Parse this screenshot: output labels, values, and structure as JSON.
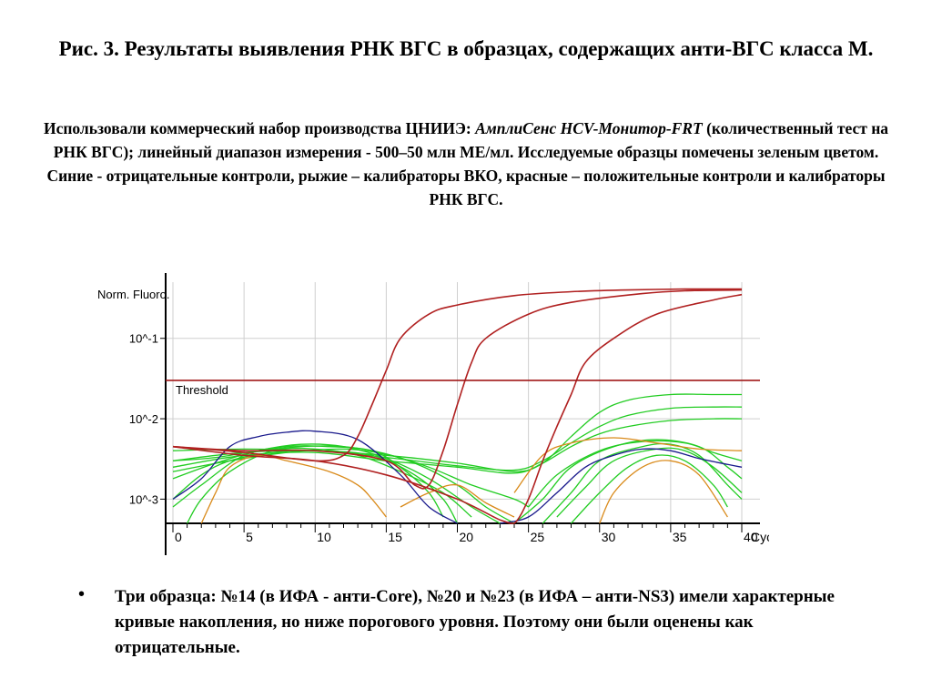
{
  "slide": {
    "title": "Рис. 3. Результаты выявления РНК ВГС в образцах, содержащих анти-ВГС класса М.",
    "desc_prefix": "Использовали коммерческий набор производства ЦНИИЭ: ",
    "desc_kit": "АмплиСенс HCV-Монитор-FRT",
    "desc_rest": " (количественный тест на РНК ВГС); линейный диапазон измерения - 500–50 млн МЕ/мл. Исследуемые образцы помечены зеленым цветом. Синие - отрицательные контроли, рыжие – калибраторы ВКО, красные – положительные контроли и калибраторы РНК ВГС.",
    "bullet_symbol": "•",
    "bullet": "Три образца: №14 (в ИФА - анти-Core),  №20 и №23 (в ИФА – анти-NS3) имели характерные кривые накопления, но ниже порогового уровня. Поэтому они были оценены как отрицательные."
  },
  "colors": {
    "sample": "#22cc22",
    "negative_control": "#1a1a8c",
    "vko_calibrator": "#d98a1a",
    "positive": "#b02020",
    "threshold": "#a01818",
    "grid": "#cfcfcf"
  },
  "chart_data": {
    "type": "line",
    "y_scale": "log",
    "ylabel": "Norm. Fluoro.",
    "xlabel": "Cycle",
    "x_range": [
      0,
      40
    ],
    "y_range": [
      0.0005,
      0.5
    ],
    "x_ticks": [
      0,
      5,
      10,
      15,
      20,
      25,
      30,
      35,
      40
    ],
    "x_tick_labels": [
      "0",
      "5",
      "10",
      "15",
      "20",
      "25",
      "30",
      "35",
      "40"
    ],
    "y_ticks": [
      0.001,
      0.01,
      0.1
    ],
    "y_tick_labels": [
      "10^-3",
      "10^-2",
      "10^-1"
    ],
    "threshold": {
      "label": "Threshold",
      "value": 0.03
    },
    "grid": true,
    "series": [
      {
        "group": "positive",
        "color": "#b02020",
        "points": [
          [
            0,
            0.0045
          ],
          [
            5,
            0.0038
          ],
          [
            10,
            0.003
          ],
          [
            12,
            0.0035
          ],
          [
            13,
            0.006
          ],
          [
            14,
            0.015
          ],
          [
            15,
            0.04
          ],
          [
            16,
            0.1
          ],
          [
            18,
            0.2
          ],
          [
            20,
            0.26
          ],
          [
            24,
            0.34
          ],
          [
            28,
            0.38
          ],
          [
            32,
            0.4
          ],
          [
            36,
            0.41
          ],
          [
            40,
            0.41
          ]
        ]
      },
      {
        "group": "positive",
        "color": "#b02020",
        "points": [
          [
            0,
            0.0045
          ],
          [
            5,
            0.004
          ],
          [
            10,
            0.004
          ],
          [
            15,
            0.003
          ],
          [
            17,
            0.0015
          ],
          [
            18,
            0.0015
          ],
          [
            19,
            0.004
          ],
          [
            20,
            0.015
          ],
          [
            21,
            0.05
          ],
          [
            22,
            0.1
          ],
          [
            25,
            0.2
          ],
          [
            28,
            0.28
          ],
          [
            33,
            0.36
          ],
          [
            36,
            0.39
          ],
          [
            40,
            0.4
          ]
        ]
      },
      {
        "group": "positive",
        "color": "#b02020",
        "points": [
          [
            0,
            0.0045
          ],
          [
            5,
            0.0035
          ],
          [
            10,
            0.003
          ],
          [
            15,
            0.002
          ],
          [
            20,
            0.001
          ],
          [
            23,
            0.00055
          ],
          [
            24,
            0.0005
          ],
          [
            25,
            0.001
          ],
          [
            26,
            0.003
          ],
          [
            27,
            0.008
          ],
          [
            28,
            0.02
          ],
          [
            29,
            0.05
          ],
          [
            31,
            0.1
          ],
          [
            34,
            0.2
          ],
          [
            38,
            0.3
          ],
          [
            40,
            0.35
          ]
        ]
      },
      {
        "group": "negative_control",
        "color": "#1a1a8c",
        "points": [
          [
            0,
            0.001
          ],
          [
            2,
            0.0018
          ],
          [
            4,
            0.0045
          ],
          [
            6,
            0.006
          ],
          [
            8,
            0.0068
          ],
          [
            10,
            0.007
          ],
          [
            13,
            0.0055
          ],
          [
            16,
            0.002
          ],
          [
            18,
            0.0008
          ],
          [
            20,
            0.0004
          ]
        ]
      },
      {
        "group": "negative_control",
        "color": "#1a1a8c",
        "points": [
          [
            23,
            0.0004
          ],
          [
            25,
            0.0006
          ],
          [
            27,
            0.0012
          ],
          [
            29,
            0.0025
          ],
          [
            31,
            0.0035
          ],
          [
            33,
            0.0042
          ],
          [
            35,
            0.004
          ],
          [
            37,
            0.0032
          ],
          [
            39,
            0.0027
          ],
          [
            40,
            0.0025
          ]
        ]
      },
      {
        "group": "vko_calibrator",
        "color": "#d98a1a",
        "points": [
          [
            2,
            0.0005
          ],
          [
            3,
            0.0012
          ],
          [
            4,
            0.0025
          ],
          [
            6,
            0.0035
          ],
          [
            8,
            0.003
          ],
          [
            11,
            0.0022
          ],
          [
            13,
            0.0015
          ],
          [
            14,
            0.001
          ],
          [
            15,
            0.0006
          ]
        ]
      },
      {
        "group": "vko_calibrator",
        "color": "#d98a1a",
        "points": [
          [
            16,
            0.0008
          ],
          [
            18,
            0.0012
          ],
          [
            20,
            0.0015
          ],
          [
            22,
            0.0009
          ],
          [
            24,
            0.0006
          ]
        ]
      },
      {
        "group": "vko_calibrator",
        "color": "#d98a1a",
        "points": [
          [
            24,
            0.0012
          ],
          [
            26,
            0.0035
          ],
          [
            28,
            0.005
          ],
          [
            31,
            0.0058
          ],
          [
            34,
            0.005
          ],
          [
            37,
            0.0042
          ],
          [
            40,
            0.004
          ]
        ]
      },
      {
        "group": "vko_calibrator",
        "color": "#d98a1a",
        "points": [
          [
            30,
            0.0005
          ],
          [
            31,
            0.0012
          ],
          [
            33,
            0.0025
          ],
          [
            35,
            0.003
          ],
          [
            37,
            0.002
          ],
          [
            39,
            0.0006
          ]
        ]
      },
      {
        "group": "sample",
        "color": "#22cc22",
        "points": [
          [
            0,
            0.004
          ],
          [
            5,
            0.0042
          ],
          [
            10,
            0.004
          ],
          [
            15,
            0.0035
          ],
          [
            20,
            0.0028
          ],
          [
            24,
            0.0022
          ],
          [
            26,
            0.0028
          ],
          [
            28,
            0.006
          ],
          [
            30,
            0.012
          ],
          [
            32,
            0.017
          ],
          [
            35,
            0.02
          ],
          [
            38,
            0.02
          ],
          [
            40,
            0.02
          ]
        ]
      },
      {
        "group": "sample",
        "color": "#22cc22",
        "points": [
          [
            0,
            0.003
          ],
          [
            5,
            0.0038
          ],
          [
            10,
            0.004
          ],
          [
            15,
            0.0033
          ],
          [
            20,
            0.0026
          ],
          [
            24,
            0.0023
          ],
          [
            26,
            0.003
          ],
          [
            28,
            0.005
          ],
          [
            30,
            0.008
          ],
          [
            32,
            0.011
          ],
          [
            35,
            0.0135
          ],
          [
            38,
            0.014
          ],
          [
            40,
            0.014
          ]
        ]
      },
      {
        "group": "sample",
        "color": "#22cc22",
        "points": [
          [
            0,
            0.0025
          ],
          [
            5,
            0.0035
          ],
          [
            10,
            0.0038
          ],
          [
            15,
            0.003
          ],
          [
            20,
            0.0025
          ],
          [
            24,
            0.0021
          ],
          [
            26,
            0.0028
          ],
          [
            28,
            0.0045
          ],
          [
            30,
            0.0065
          ],
          [
            32,
            0.008
          ],
          [
            35,
            0.0095
          ],
          [
            38,
            0.01
          ],
          [
            40,
            0.01
          ]
        ]
      },
      {
        "group": "sample",
        "color": "#22cc22",
        "points": [
          [
            0,
            0.001
          ],
          [
            2,
            0.002
          ],
          [
            4,
            0.003
          ],
          [
            7,
            0.0038
          ],
          [
            10,
            0.004
          ],
          [
            14,
            0.0035
          ],
          [
            17,
            0.002
          ],
          [
            19,
            0.001
          ],
          [
            20,
            0.0005
          ]
        ]
      },
      {
        "group": "sample",
        "color": "#22cc22",
        "points": [
          [
            0,
            0.0008
          ],
          [
            2,
            0.0015
          ],
          [
            5,
            0.0035
          ],
          [
            8,
            0.0045
          ],
          [
            11,
            0.0045
          ],
          [
            14,
            0.004
          ],
          [
            16,
            0.0025
          ],
          [
            18,
            0.0012
          ],
          [
            19,
            0.0006
          ]
        ]
      },
      {
        "group": "sample",
        "color": "#22cc22",
        "points": [
          [
            0,
            0.0018
          ],
          [
            3,
            0.0028
          ],
          [
            6,
            0.004
          ],
          [
            9,
            0.0048
          ],
          [
            12,
            0.0045
          ],
          [
            15,
            0.0032
          ],
          [
            18,
            0.0018
          ],
          [
            21,
            0.0008
          ],
          [
            23,
            0.0004
          ]
        ]
      },
      {
        "group": "sample",
        "color": "#22cc22",
        "points": [
          [
            0,
            0.003
          ],
          [
            3,
            0.0033
          ],
          [
            7,
            0.0042
          ],
          [
            11,
            0.0046
          ],
          [
            14,
            0.004
          ],
          [
            17,
            0.0028
          ],
          [
            20,
            0.0015
          ],
          [
            22,
            0.0008
          ],
          [
            24,
            0.0004
          ]
        ]
      },
      {
        "group": "sample",
        "color": "#22cc22",
        "points": [
          [
            1,
            0.0005
          ],
          [
            2,
            0.001
          ],
          [
            4,
            0.0022
          ],
          [
            7,
            0.004
          ],
          [
            10,
            0.0042
          ],
          [
            13,
            0.0035
          ],
          [
            16,
            0.0022
          ],
          [
            19,
            0.0012
          ],
          [
            21,
            0.0006
          ]
        ]
      },
      {
        "group": "sample",
        "color": "#22cc22",
        "points": [
          [
            0,
            0.0022
          ],
          [
            4,
            0.003
          ],
          [
            8,
            0.0038
          ],
          [
            12,
            0.0042
          ],
          [
            15,
            0.0036
          ],
          [
            18,
            0.0025
          ],
          [
            21,
            0.0015
          ],
          [
            24,
            0.001
          ],
          [
            25,
            0.0008
          ]
        ]
      },
      {
        "group": "sample",
        "color": "#22cc22",
        "points": [
          [
            24,
            0.0005
          ],
          [
            26,
            0.001
          ],
          [
            28,
            0.0025
          ],
          [
            31,
            0.0045
          ],
          [
            34,
            0.0055
          ],
          [
            37,
            0.0045
          ],
          [
            39,
            0.0025
          ],
          [
            40,
            0.0018
          ]
        ]
      },
      {
        "group": "sample",
        "color": "#22cc22",
        "points": [
          [
            26,
            0.0005
          ],
          [
            28,
            0.0012
          ],
          [
            30,
            0.003
          ],
          [
            33,
            0.0045
          ],
          [
            35,
            0.0048
          ],
          [
            37,
            0.0035
          ],
          [
            39,
            0.0015
          ],
          [
            40,
            0.001
          ]
        ]
      },
      {
        "group": "sample",
        "color": "#22cc22",
        "points": [
          [
            27,
            0.0006
          ],
          [
            29,
            0.0014
          ],
          [
            31,
            0.003
          ],
          [
            34,
            0.0042
          ],
          [
            36,
            0.004
          ],
          [
            38,
            0.0025
          ],
          [
            40,
            0.0012
          ]
        ]
      },
      {
        "group": "sample",
        "color": "#22cc22",
        "points": [
          [
            25,
            0.0008
          ],
          [
            27,
            0.002
          ],
          [
            30,
            0.004
          ],
          [
            33,
            0.0052
          ],
          [
            36,
            0.005
          ],
          [
            38,
            0.0038
          ],
          [
            40,
            0.003
          ]
        ]
      },
      {
        "group": "sample",
        "color": "#22cc22",
        "points": [
          [
            28,
            0.0005
          ],
          [
            30,
            0.0012
          ],
          [
            32,
            0.0025
          ],
          [
            34,
            0.0035
          ],
          [
            36,
            0.003
          ],
          [
            38,
            0.0015
          ],
          [
            39,
            0.0008
          ]
        ]
      }
    ]
  }
}
